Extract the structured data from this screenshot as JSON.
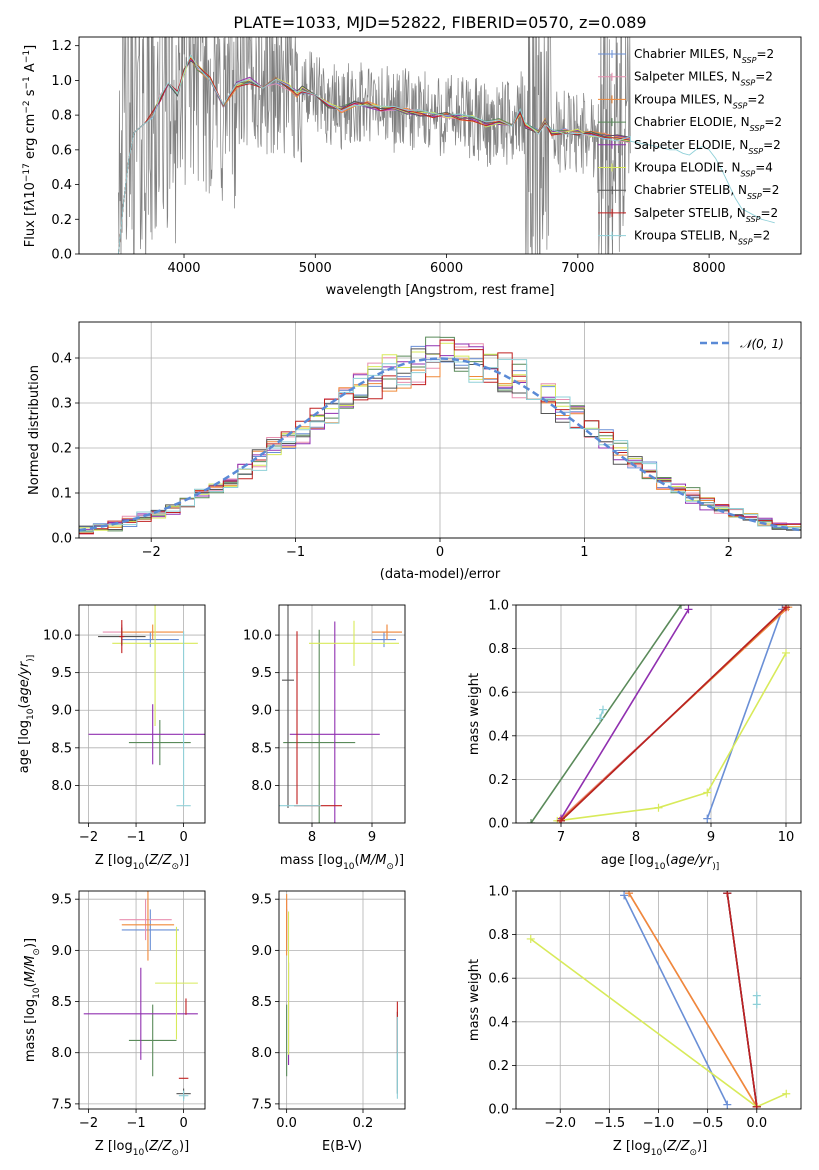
{
  "figure": {
    "title": "PLATE=1033, MJD=52822, FIBERID=0570, z=0.089"
  },
  "models": [
    {
      "name": "Chabrier MILES",
      "color": "#6a8fd6"
    },
    {
      "name": "Salpeter MILES",
      "color": "#e88fb0"
    },
    {
      "name": "Kroupa MILES",
      "color": "#f08a3a"
    },
    {
      "name": "Chabrier ELODIE",
      "color": "#5a8a5a"
    },
    {
      "name": "Salpeter ELODIE",
      "color": "#9030b0"
    },
    {
      "name": "Kroupa ELODIE",
      "color": "#d8ea5a"
    },
    {
      "name": "Chabrier STELIB",
      "color": "#555555"
    },
    {
      "name": "Salpeter STELIB",
      "color": "#c02020"
    },
    {
      "name": "Kroupa STELIB",
      "color": "#8fd0d8"
    }
  ],
  "chart_data": [
    {
      "id": "spectrum",
      "type": "line",
      "xlabel": "wavelength [Angstrom, rest frame]",
      "ylabel_parts": [
        "Flux [f",
        "λ",
        "10",
        "−17",
        " erg cm",
        "−2",
        " s",
        "−1",
        " A",
        "−1",
        "]"
      ],
      "xlim": [
        3200,
        8700
      ],
      "ylim": [
        0,
        1.25
      ],
      "xticks": [
        4000,
        5000,
        6000,
        7000,
        8000
      ],
      "yticks": [
        0.0,
        0.2,
        0.4,
        0.6,
        0.8,
        1.0,
        1.2
      ],
      "grid": false,
      "legend_placement": "right",
      "legend_entries": [
        {
          "label": "Chabrier MILES, N",
          "sub": "SSP",
          "suffix": "=2"
        },
        {
          "label": "Salpeter MILES, N",
          "sub": "SSP",
          "suffix": "=2"
        },
        {
          "label": "Kroupa MILES, N",
          "sub": "SSP",
          "suffix": "=2"
        },
        {
          "label": "Chabrier ELODIE, N",
          "sub": "SSP",
          "suffix": "=2"
        },
        {
          "label": "Salpeter ELODIE, N",
          "sub": "SSP",
          "suffix": "=2"
        },
        {
          "label": "Kroupa ELODIE, N",
          "sub": "SSP",
          "suffix": "=4"
        },
        {
          "label": "Chabrier STELIB, N",
          "sub": "SSP",
          "suffix": "=2"
        },
        {
          "label": "Salpeter STELIB, N",
          "sub": "SSP",
          "suffix": "=2"
        },
        {
          "label": "Kroupa STELIB, N",
          "sub": "SSP",
          "suffix": "=2"
        }
      ],
      "observed_range": [
        3500,
        7400
      ],
      "model_continuum": {
        "x": [
          3500,
          3560,
          3620,
          3700,
          3760,
          3820,
          3880,
          3950,
          4000,
          4050,
          4100,
          4200,
          4300,
          4400,
          4500,
          4600,
          4700,
          4800,
          4860,
          4900,
          5000,
          5100,
          5200,
          5300,
          5400,
          5500,
          5600,
          5700,
          5800,
          5900,
          6000,
          6100,
          6200,
          6300,
          6400,
          6500,
          6560,
          6600,
          6700,
          6750,
          6800,
          6900,
          7000,
          7100,
          7200,
          7300,
          7400
        ],
        "y": [
          0.8,
          0.82,
          0.74,
          0.76,
          0.8,
          0.9,
          0.98,
          0.93,
          1.05,
          1.13,
          1.08,
          1.0,
          0.85,
          0.97,
          1.0,
          0.97,
          1.0,
          0.96,
          0.92,
          0.95,
          0.9,
          0.86,
          0.83,
          0.87,
          0.86,
          0.84,
          0.83,
          0.82,
          0.81,
          0.8,
          0.8,
          0.79,
          0.78,
          0.75,
          0.76,
          0.74,
          0.82,
          0.74,
          0.7,
          0.76,
          0.7,
          0.71,
          0.7,
          0.69,
          0.68,
          0.67,
          0.66
        ]
      },
      "kroupa_stelib_extension": {
        "x": [
          7400,
          7600,
          7700,
          7750,
          7800,
          7850,
          7900,
          7950,
          8000,
          8050,
          8100,
          8150,
          8200,
          8250,
          8300,
          8350,
          8400,
          8450,
          8500
        ],
        "y": [
          0.65,
          0.62,
          0.6,
          0.6,
          0.58,
          0.57,
          0.6,
          0.62,
          0.6,
          0.55,
          0.48,
          0.4,
          0.32,
          0.26,
          0.24,
          0.22,
          0.2,
          0.19,
          0.18
        ]
      },
      "uv_rise": {
        "x": [
          3500,
          3540,
          3580,
          3620
        ],
        "y": [
          0.0,
          0.3,
          0.55,
          0.7
        ]
      }
    },
    {
      "id": "residual-histogram",
      "type": "histogram",
      "xlabel": "(data-model)/error",
      "ylabel": "Normed distribution",
      "xlim": [
        -2.5,
        2.5
      ],
      "ylim": [
        0,
        0.48
      ],
      "xticks": [
        -2,
        -1,
        0,
        1,
        2
      ],
      "yticks": [
        0.0,
        0.1,
        0.2,
        0.3,
        0.4
      ],
      "grid": true,
      "legend_placement": "top-right",
      "legend_label": "𝒩(0, 1)",
      "reference_curve": {
        "type": "normal",
        "mean": 0,
        "sigma": 1,
        "color": "#5a8ad6"
      },
      "bin_width": 0.1,
      "bin_start": -2.5
    },
    {
      "id": "age-vs-Z",
      "type": "errorbar",
      "xlabel_parts": [
        "Z [log",
        "10",
        "(",
        "Z/Z",
        "⊙",
        ")]"
      ],
      "ylabel_parts": [
        "age  [log",
        "10",
        "(",
        "age/yr",
        ")]"
      ],
      "xlim": [
        -2.2,
        0.45
      ],
      "ylim": [
        7.5,
        10.4
      ],
      "xticks": [
        -2,
        -1,
        0
      ],
      "yticks": [
        8.0,
        8.5,
        9.0,
        9.5,
        10.0
      ],
      "grid": true,
      "points": [
        {
          "m": 0,
          "x": -0.7,
          "xerr": 0.6,
          "y": 9.94,
          "yerr": 0.1
        },
        {
          "m": 1,
          "x": -1.3,
          "xerr": 0.4,
          "y": 10.04,
          "yerr": 0.1
        },
        {
          "m": 2,
          "x": -0.65,
          "xerr": 0.65,
          "y": 10.04,
          "yerr": 0.1
        },
        {
          "m": 3,
          "x": -0.5,
          "xerr": 0.65,
          "y": 8.57,
          "yerr": 0.3
        },
        {
          "m": 4,
          "x": -0.65,
          "xerr": 1.35,
          "y": 8.68,
          "yerr": 0.4
        },
        {
          "m": 5,
          "x": -0.6,
          "xerr": 0.9,
          "y": 9.89,
          "yerr": 1.1
        },
        {
          "m": 6,
          "x": -1.3,
          "xerr": 0.5,
          "y": 9.98,
          "yerr": 0.12
        },
        {
          "m": 7,
          "x": -1.3,
          "xerr": 0.05,
          "y": 9.98,
          "yerr": 0.22
        },
        {
          "m": 8,
          "x": 0.0,
          "xerr": 0.15,
          "y": 7.73,
          "yerr": 0.0
        },
        {
          "m": 8,
          "x": 0.0,
          "xerr": 0.0,
          "y": 8.9,
          "yerr": 1.15
        }
      ]
    },
    {
      "id": "age-vs-mass",
      "type": "errorbar",
      "xlabel_parts": [
        "mass [log",
        "10",
        "(",
        "M/M",
        "⊙",
        ")]"
      ],
      "xlim": [
        7.45,
        9.55
      ],
      "ylim": [
        7.5,
        10.4
      ],
      "xticks": [
        8,
        9
      ],
      "yticks": [
        8.0,
        8.5,
        9.0,
        9.5,
        10.0
      ],
      "grid": true,
      "points": [
        {
          "m": 0,
          "x": 9.2,
          "xerr": 0.2,
          "y": 9.94,
          "yerr": 0.1
        },
        {
          "m": 1,
          "x": 9.25,
          "xerr": 0.25,
          "y": 10.04,
          "yerr": 0.1
        },
        {
          "m": 2,
          "x": 9.25,
          "xerr": 0.25,
          "y": 10.04,
          "yerr": 0.1
        },
        {
          "m": 3,
          "x": 8.12,
          "xerr": 0.6,
          "y": 8.57,
          "yerr": 1.5
        },
        {
          "m": 4,
          "x": 8.38,
          "xerr": 0.75,
          "y": 8.68,
          "yerr": 1.5
        },
        {
          "m": 5,
          "x": 8.7,
          "xerr": 0.75,
          "y": 9.89,
          "yerr": 0.3
        },
        {
          "m": 6,
          "x": 7.6,
          "xerr": 0.1,
          "y": 9.4,
          "yerr": 1.7
        },
        {
          "m": 7,
          "x": 7.75,
          "xerr": 0.0,
          "y": 8.9,
          "yerr": 1.15
        },
        {
          "m": 7,
          "x": 8.1,
          "xerr": 0.4,
          "y": 7.73,
          "yerr": 0.0
        },
        {
          "m": 8,
          "x": 7.8,
          "xerr": 0.35,
          "y": 7.73,
          "yerr": 0.0
        }
      ]
    },
    {
      "id": "mass-weight-vs-age",
      "type": "line",
      "xlabel_parts": [
        "age  [log",
        "10",
        "(",
        "age/yr",
        ")]"
      ],
      "ylabel": "mass weight",
      "xlim": [
        6.4,
        10.2
      ],
      "ylim": [
        0,
        1.0
      ],
      "xticks": [
        7,
        8,
        9,
        10
      ],
      "yticks": [
        0.0,
        0.2,
        0.4,
        0.6,
        0.8,
        1.0
      ],
      "grid": true,
      "series": [
        {
          "m": 0,
          "x": [
            8.95,
            9.95
          ],
          "y": [
            0.02,
            0.98
          ]
        },
        {
          "m": 1,
          "x": [
            7.0,
            10.0
          ],
          "y": [
            0.02,
            0.98
          ]
        },
        {
          "m": 2,
          "x": [
            6.98,
            10.03
          ],
          "y": [
            0.01,
            0.99
          ]
        },
        {
          "m": 3,
          "x": [
            6.6,
            8.6
          ],
          "y": [
            0.0,
            1.0
          ]
        },
        {
          "m": 4,
          "x": [
            7.0,
            8.7
          ],
          "y": [
            0.02,
            0.98
          ]
        },
        {
          "m": 5,
          "x": [
            6.95,
            8.3,
            8.95,
            10.0
          ],
          "y": [
            0.01,
            0.07,
            0.14,
            0.78
          ]
        },
        {
          "m": 6,
          "x": [
            7.0,
            10.0
          ],
          "y": [
            0.01,
            0.99
          ]
        },
        {
          "m": 7,
          "x": [
            7.0,
            10.0
          ],
          "y": [
            0.01,
            0.99
          ]
        },
        {
          "m": 8,
          "x": [
            7.52,
            7.56
          ],
          "y": [
            0.48,
            0.52
          ]
        }
      ]
    },
    {
      "id": "mass-vs-Z",
      "type": "errorbar",
      "xlabel_parts": [
        "Z [log",
        "10",
        "(",
        "Z/Z",
        "⊙",
        ")]"
      ],
      "ylabel_parts": [
        "mass [log",
        "10",
        "(",
        "M/M",
        "⊙",
        ")]"
      ],
      "xlim": [
        -2.2,
        0.45
      ],
      "ylim": [
        7.45,
        9.58
      ],
      "xticks": [
        -2,
        -1,
        0
      ],
      "yticks": [
        7.5,
        8.0,
        8.5,
        9.0,
        9.5
      ],
      "grid": true,
      "points": [
        {
          "m": 0,
          "x": -0.7,
          "xerr": 0.6,
          "y": 9.2,
          "yerr": 0.2
        },
        {
          "m": 1,
          "x": -0.8,
          "xerr": 0.55,
          "y": 9.3,
          "yerr": 0.2
        },
        {
          "m": 2,
          "x": -0.75,
          "xerr": 0.55,
          "y": 9.25,
          "yerr": 0.35
        },
        {
          "m": 3,
          "x": -0.65,
          "xerr": 0.5,
          "y": 8.12,
          "yerr": 0.35
        },
        {
          "m": 4,
          "x": -0.9,
          "xerr": 1.2,
          "y": 8.38,
          "yerr": 0.45
        },
        {
          "m": 5,
          "x": -0.15,
          "xerr": 0.45,
          "y": 8.68,
          "yerr": 0.55
        },
        {
          "m": 6,
          "x": 0.0,
          "xerr": 0.15,
          "y": 7.6,
          "yerr": 0.05
        },
        {
          "m": 7,
          "x": 0.0,
          "xerr": 0.1,
          "y": 7.75,
          "yerr": 0.0
        },
        {
          "m": 7,
          "x": 0.05,
          "xerr": 0.0,
          "y": 8.45,
          "yerr": 0.08
        },
        {
          "m": 8,
          "x": 0.0,
          "xerr": 0.1,
          "y": 7.58,
          "yerr": 0.05
        }
      ]
    },
    {
      "id": "mass-vs-EBV",
      "type": "errorbar",
      "xlabel": "E(B-V)",
      "xlim": [
        -0.02,
        0.31
      ],
      "ylim": [
        7.45,
        9.58
      ],
      "xticks": [
        0.0,
        0.2
      ],
      "yticks": [
        7.5,
        8.0,
        8.5,
        9.0,
        9.5
      ],
      "grid": true,
      "points": [
        {
          "m": 0,
          "x": 0.0,
          "xerr": 0,
          "y": 9.2,
          "yerr": 0.2
        },
        {
          "m": 1,
          "x": 0.0,
          "xerr": 0,
          "y": 9.3,
          "yerr": 0.2
        },
        {
          "m": 2,
          "x": 0.0,
          "xerr": 0,
          "y": 9.25,
          "yerr": 0.3
        },
        {
          "m": 3,
          "x": 0.0,
          "xerr": 0,
          "y": 8.12,
          "yerr": 0.35
        },
        {
          "m": 4,
          "x": 0.005,
          "xerr": 0,
          "y": 8.38,
          "yerr": 0.5
        },
        {
          "m": 5,
          "x": 0.005,
          "xerr": 0,
          "y": 8.68,
          "yerr": 0.7
        },
        {
          "m": 6,
          "x": 0.29,
          "xerr": 0,
          "y": 8.0,
          "yerr": 0.4
        },
        {
          "m": 7,
          "x": 0.29,
          "xerr": 0,
          "y": 8.25,
          "yerr": 0.25
        },
        {
          "m": 8,
          "x": 0.29,
          "xerr": 0,
          "y": 7.95,
          "yerr": 0.4
        }
      ]
    },
    {
      "id": "mass-weight-vs-Z",
      "type": "line",
      "xlabel_parts": [
        "Z [log",
        "10",
        "(",
        "Z/Z",
        "⊙",
        ")]"
      ],
      "ylabel": "mass weight",
      "xlim": [
        -2.45,
        0.45
      ],
      "ylim": [
        0,
        1.0
      ],
      "xticks": [
        -2.0,
        -1.5,
        -1.0,
        -0.5,
        0.0
      ],
      "yticks": [
        0.0,
        0.2,
        0.4,
        0.6,
        0.8,
        1.0
      ],
      "grid": true,
      "series": [
        {
          "m": 0,
          "x": [
            -1.35,
            -0.3
          ],
          "y": [
            0.98,
            0.02
          ]
        },
        {
          "m": 1,
          "x": [
            -1.3,
            0.0
          ],
          "y": [
            0.99,
            0.01
          ]
        },
        {
          "m": 2,
          "x": [
            -1.3,
            0.0
          ],
          "y": [
            0.99,
            0.01
          ]
        },
        {
          "m": 3,
          "x": [
            -0.3,
            0.0
          ],
          "y": [
            0.99,
            0.01
          ]
        },
        {
          "m": 4,
          "x": [
            -0.3,
            0.0
          ],
          "y": [
            0.99,
            0.01
          ]
        },
        {
          "m": 5,
          "x": [
            -2.3,
            0.0,
            0.3
          ],
          "y": [
            0.78,
            0.01,
            0.07
          ]
        },
        {
          "m": 6,
          "x": [
            -0.3,
            0.0
          ],
          "y": [
            0.99,
            0.01
          ]
        },
        {
          "m": 7,
          "x": [
            -0.3,
            0.0
          ],
          "y": [
            0.99,
            0.01
          ]
        },
        {
          "m": 8,
          "x": [
            0.0,
            0.0
          ],
          "y": [
            0.48,
            0.52
          ]
        }
      ]
    }
  ]
}
